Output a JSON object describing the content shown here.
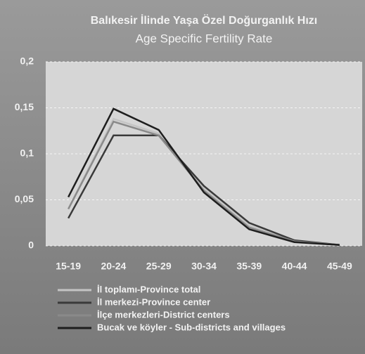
{
  "chart_data": {
    "type": "line",
    "title": "Balıkesir İlinde Yaşa Özel Doğurganlık Hızı",
    "subtitle": "Age Specific Fertility Rate",
    "categories": [
      "15-19",
      "20-24",
      "25-29",
      "30-34",
      "35-39",
      "40-44",
      "45-49"
    ],
    "series": [
      {
        "name": "İl toplamı-Province total",
        "color": "#c4c4c4",
        "values": [
          0.04,
          0.138,
          0.122,
          0.062,
          0.022,
          0.005,
          0.001
        ]
      },
      {
        "name": "İl merkezi-Province center",
        "color": "#3a3a3a",
        "values": [
          0.03,
          0.12,
          0.12,
          0.065,
          0.025,
          0.006,
          0.001
        ]
      },
      {
        "name": "İlçe merkezleri-District centers",
        "color": "#8a8a8a",
        "values": [
          0.04,
          0.135,
          0.12,
          0.06,
          0.02,
          0.005,
          0.001
        ]
      },
      {
        "name": "Bucak ve köyler - Sub-districts and villages",
        "color": "#1e1e1e",
        "values": [
          0.053,
          0.149,
          0.126,
          0.058,
          0.018,
          0.004,
          0.001
        ]
      }
    ],
    "ylim": [
      0,
      0.2
    ],
    "yticks": [
      0,
      {
        "value": 0.05,
        "label": "0,05"
      },
      {
        "value": 0.1,
        "label": "0,1"
      },
      {
        "value": 0.15,
        "label": "0,15"
      },
      {
        "value": 0.2,
        "label": "0,2"
      }
    ],
    "grid": true
  }
}
